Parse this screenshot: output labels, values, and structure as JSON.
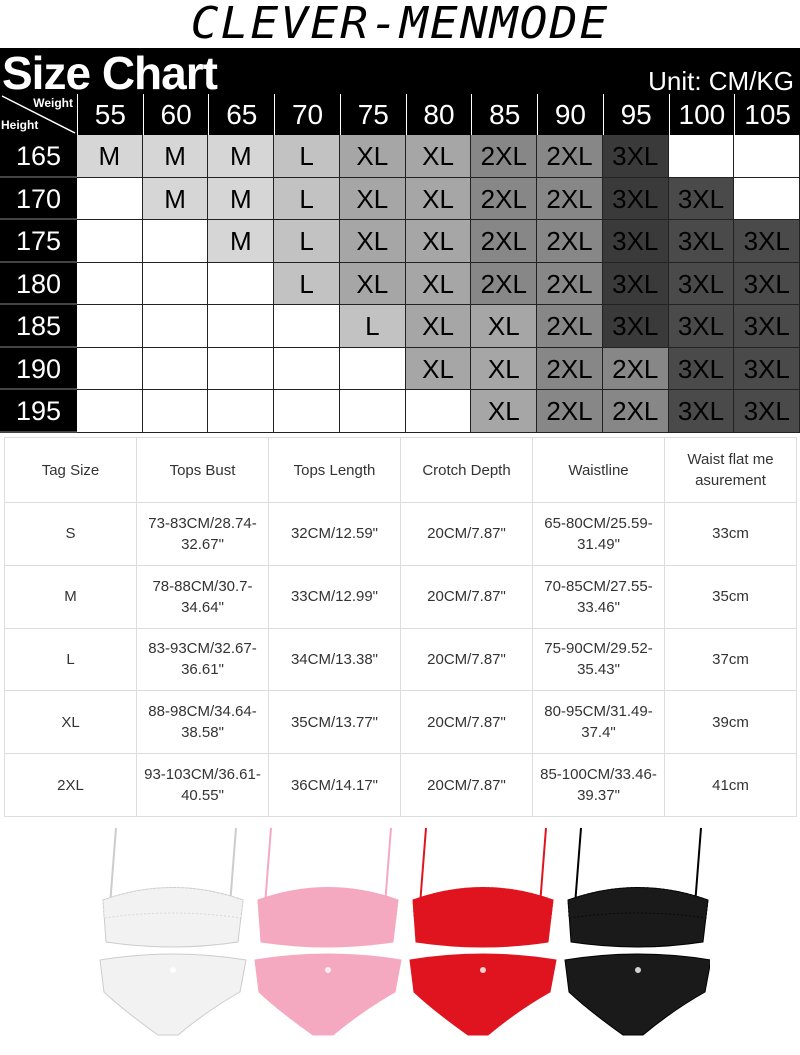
{
  "brand": "CLEVER-MENMODE",
  "size_chart": {
    "title": "Size Chart",
    "unit": "Unit: CM/KG",
    "corner_weight": "Weight",
    "corner_height": "Height",
    "weights": [
      "55",
      "60",
      "65",
      "70",
      "75",
      "80",
      "85",
      "90",
      "95",
      "100",
      "105"
    ],
    "rows": [
      {
        "height": "165",
        "sizes": [
          "M",
          "M",
          "M",
          "L",
          "XL",
          "XL",
          "2XL",
          "2XL",
          "3XL",
          "",
          ""
        ]
      },
      {
        "height": "170",
        "sizes": [
          "",
          "M",
          "M",
          "L",
          "XL",
          "XL",
          "2XL",
          "2XL",
          "3XL",
          "3XL",
          ""
        ]
      },
      {
        "height": "175",
        "sizes": [
          "",
          "",
          "M",
          "L",
          "XL",
          "XL",
          "2XL",
          "2XL",
          "3XL",
          "3XL",
          "3XL"
        ]
      },
      {
        "height": "180",
        "sizes": [
          "",
          "",
          "",
          "L",
          "XL",
          "XL",
          "2XL",
          "2XL",
          "3XL",
          "3XL",
          "3XL"
        ]
      },
      {
        "height": "185",
        "sizes": [
          "",
          "",
          "",
          "",
          "L",
          "XL",
          "XL",
          "2XL",
          "3XL",
          "3XL",
          "3XL"
        ]
      },
      {
        "height": "190",
        "sizes": [
          "",
          "",
          "",
          "",
          "",
          "XL",
          "XL",
          "2XL",
          "2XL",
          "3XL",
          "3XL"
        ]
      },
      {
        "height": "195",
        "sizes": [
          "",
          "",
          "",
          "",
          "",
          "",
          "XL",
          "2XL",
          "2XL",
          "3XL",
          "3XL"
        ]
      }
    ],
    "size_colors": {
      "M": "#d6d6d6",
      "L": "#c2c2c2",
      "XL": "#a6a6a6",
      "2XL": "#878787",
      "3XL": "#4a4a4a"
    }
  },
  "measurements": {
    "headers": [
      "Tag Size",
      "Tops Bust",
      "Tops Length",
      "Crotch Depth",
      "Waistline",
      "Waist flat me asurement"
    ],
    "rows": [
      [
        "S",
        "73-83CM/28.74-32.67\"",
        "32CM/12.59\"",
        "20CM/7.87\"",
        "65-80CM/25.59-31.49\"",
        "33cm"
      ],
      [
        "M",
        "78-88CM/30.7-34.64\"",
        "33CM/12.99\"",
        "20CM/7.87\"",
        "70-85CM/27.55-33.46\"",
        "35cm"
      ],
      [
        "L",
        "83-93CM/32.67-36.61\"",
        "34CM/13.38\"",
        "20CM/7.87\"",
        "75-90CM/29.52-35.43\"",
        "37cm"
      ],
      [
        "XL",
        "88-98CM/34.64-38.58\"",
        "35CM/13.77\"",
        "20CM/7.87\"",
        "80-95CM/31.49-37.4\"",
        "39cm"
      ],
      [
        "2XL",
        "93-103CM/36.61-40.55\"",
        "36CM/14.17\"",
        "20CM/7.87\"",
        "85-100CM/33.46-39.37\"",
        "41cm"
      ]
    ]
  },
  "product_colors": [
    {
      "color": "white",
      "hex": "#f2f2f2"
    },
    {
      "color": "pink",
      "hex": "#f4a9c0"
    },
    {
      "color": "red",
      "hex": "#e0141e"
    },
    {
      "color": "black",
      "hex": "#1a1a1a"
    }
  ]
}
